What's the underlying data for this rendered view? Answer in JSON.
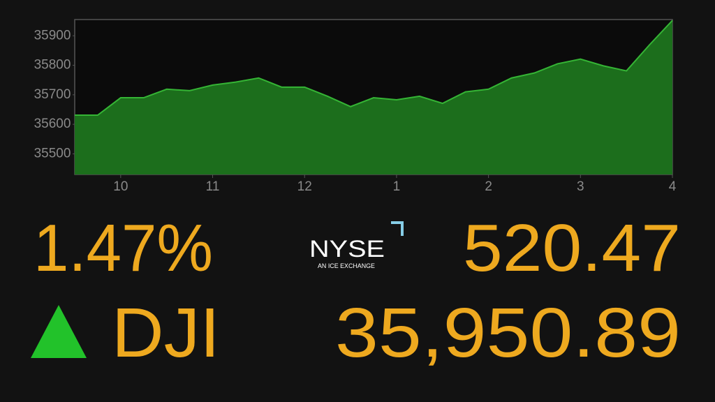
{
  "chart_data": {
    "type": "area",
    "x": [
      9.5,
      9.75,
      10.0,
      10.25,
      10.5,
      10.75,
      11.0,
      11.25,
      11.5,
      11.75,
      12.0,
      12.25,
      12.5,
      12.75,
      13.0,
      13.25,
      13.5,
      13.75,
      14.0,
      14.25,
      14.5,
      14.75,
      15.0,
      15.25,
      15.5,
      15.75,
      16.0
    ],
    "values": [
      35631,
      35631,
      35690,
      35690,
      35719,
      35714,
      35733,
      35743,
      35757,
      35726,
      35726,
      35695,
      35660,
      35690,
      35683,
      35695,
      35671,
      35710,
      35719,
      35757,
      35774,
      35805,
      35821,
      35798,
      35781,
      35869,
      35952
    ],
    "color": "#1c6e1c",
    "line_color": "#35b535",
    "xlim": [
      9.5,
      16
    ],
    "xticks": [
      10,
      11,
      12,
      {
        "value": 13,
        "label": "1"
      },
      {
        "value": 14,
        "label": "2"
      },
      {
        "value": 15,
        "label": "3"
      },
      {
        "value": 16,
        "label": "4"
      }
    ],
    "ylim": [
      35430,
      35955
    ],
    "yticks": [
      35500,
      35600,
      35700,
      35800,
      35900
    ]
  },
  "ticker": {
    "percent": "1.47%",
    "symbol": "DJI",
    "change": "520.47",
    "price": "35,950.89"
  },
  "logo": {
    "name": "NYSE",
    "tagline": "AN ICE EXCHANGE"
  }
}
